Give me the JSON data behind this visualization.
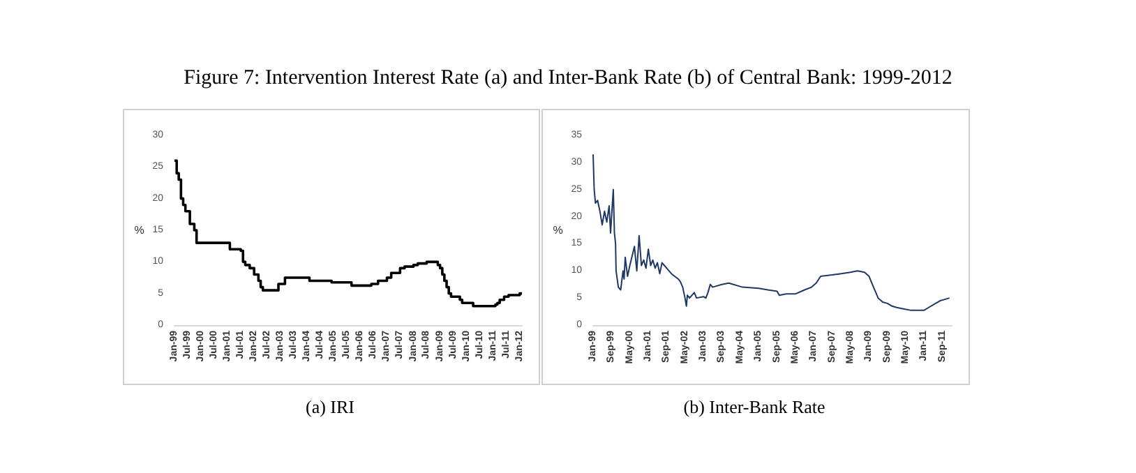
{
  "chart_data": [
    {
      "type": "step",
      "title": "Figure 7: Intervention Interest Rate (a) and Inter-Bank Rate (b) of Central Bank: 1999-2012",
      "ylabel": "%",
      "annotations": [
        "(a) IRI"
      ],
      "series": [
        {
          "color": "#000000",
          "x": [
            "1999-01",
            "1999-02",
            "1999-03",
            "1999-04",
            "1999-05",
            "1999-06",
            "1999-08",
            "1999-10",
            "1999-11",
            "2001-02",
            "2001-07",
            "2001-08",
            "2001-09",
            "2001-11",
            "2002-01",
            "2002-03",
            "2002-04",
            "2002-05",
            "2002-12",
            "2003-03",
            "2004-02",
            "2004-12",
            "2005-09",
            "2006-06",
            "2006-09",
            "2007-01",
            "2007-03",
            "2007-07",
            "2007-09",
            "2008-01",
            "2008-03",
            "2008-07",
            "2008-12",
            "2009-01",
            "2009-02",
            "2009-03",
            "2009-04",
            "2009-05",
            "2009-06",
            "2009-10",
            "2009-11",
            "2010-04",
            "2011-02",
            "2011-03",
            "2011-04",
            "2011-06",
            "2011-08",
            "2012-01",
            "2012-02"
          ],
          "values": [
            26,
            24,
            23,
            20,
            19,
            18,
            16,
            15,
            13,
            12,
            11.75,
            10,
            9.5,
            9,
            8,
            7,
            6,
            5.5,
            6.5,
            7.5,
            7,
            6.75,
            6.25,
            6.5,
            7,
            7.5,
            8.25,
            9,
            9.25,
            9.5,
            9.75,
            10,
            9.5,
            9,
            8,
            7,
            6,
            5,
            4.5,
            4,
            3.5,
            3,
            3.25,
            3.5,
            4,
            4.5,
            4.75,
            5,
            5
          ]
        }
      ],
      "xlim": [
        "1999-01",
        "2012-02"
      ],
      "ylim": [
        0,
        30
      ],
      "yticks": [
        0,
        5,
        10,
        15,
        20,
        25,
        30
      ],
      "xticks": [
        {
          "value": "1999-01",
          "label": "Jan-99"
        },
        {
          "value": "1999-07",
          "label": "Jul-99"
        },
        {
          "value": "2000-01",
          "label": "Jan-00"
        },
        {
          "value": "2000-07",
          "label": "Jul-00"
        },
        {
          "value": "2001-01",
          "label": "Jan-01"
        },
        {
          "value": "2001-07",
          "label": "Jul-01"
        },
        {
          "value": "2002-01",
          "label": "Jan-02"
        },
        {
          "value": "2002-07",
          "label": "Jul-02"
        },
        {
          "value": "2003-01",
          "label": "Jan-03"
        },
        {
          "value": "2003-07",
          "label": "Jul-03"
        },
        {
          "value": "2004-01",
          "label": "Jan-04"
        },
        {
          "value": "2004-07",
          "label": "Jul-04"
        },
        {
          "value": "2005-01",
          "label": "Jan-05"
        },
        {
          "value": "2005-07",
          "label": "Jul-05"
        },
        {
          "value": "2006-01",
          "label": "Jan-06"
        },
        {
          "value": "2006-07",
          "label": "Jul-06"
        },
        {
          "value": "2007-01",
          "label": "Jan-07"
        },
        {
          "value": "2007-07",
          "label": "Jul-07"
        },
        {
          "value": "2008-01",
          "label": "Jan-08"
        },
        {
          "value": "2008-07",
          "label": "Jul-08"
        },
        {
          "value": "2009-01",
          "label": "Jan-09"
        },
        {
          "value": "2009-07",
          "label": "Jul-09"
        },
        {
          "value": "2010-01",
          "label": "Jan-10"
        },
        {
          "value": "2010-07",
          "label": "Jul-10"
        },
        {
          "value": "2011-01",
          "label": "Jan-11"
        },
        {
          "value": "2011-07",
          "label": "Jul-11"
        },
        {
          "value": "2012-01",
          "label": "Jan-12"
        }
      ]
    },
    {
      "type": "line",
      "ylabel": "%",
      "annotations": [
        "(b) Inter-Bank Rate"
      ],
      "series": [
        {
          "color": "#1f3864",
          "x": [
            "1999-01-01",
            "1999-01-15",
            "1999-02",
            "1999-03",
            "1999-04",
            "1999-05",
            "1999-06",
            "1999-07",
            "1999-08",
            "1999-08-20",
            "1999-09-25",
            "1999-10-10",
            "1999-10-25",
            "1999-11",
            "1999-12",
            "2000-01",
            "2000-02",
            "2000-02-15",
            "2000-03",
            "2000-04",
            "2000-05",
            "2000-07",
            "2000-08",
            "2000-09",
            "2000-10",
            "2000-11",
            "2000-12",
            "2001-01",
            "2001-02",
            "2001-03",
            "2001-04",
            "2001-05",
            "2001-06",
            "2001-07",
            "2001-08",
            "2001-09",
            "2001-11",
            "2002-02",
            "2002-03",
            "2002-04",
            "2002-05-01",
            "2002-05-20",
            "2002-06",
            "2002-07",
            "2002-09",
            "2002-10",
            "2003-01",
            "2003-02",
            "2003-03",
            "2003-04",
            "2003-05",
            "2003-09",
            "2003-12",
            "2004-06",
            "2005-01",
            "2005-05",
            "2005-09",
            "2005-10",
            "2006-01",
            "2006-05",
            "2006-09",
            "2006-12",
            "2007-02",
            "2007-04",
            "2007-09",
            "2008-01",
            "2008-05",
            "2008-08",
            "2008-11",
            "2009-01",
            "2009-03",
            "2009-05",
            "2009-07",
            "2009-09",
            "2009-11",
            "2010-01",
            "2010-04",
            "2010-07",
            "2011-01",
            "2011-03",
            "2011-06",
            "2011-08",
            "2011-10",
            "2011-12"
          ],
          "values": [
            31.5,
            25,
            22.5,
            23,
            21,
            18.5,
            21,
            19,
            22,
            17,
            25,
            17,
            15,
            10,
            7,
            6.5,
            10,
            8.5,
            12.5,
            9,
            11,
            14.5,
            10,
            16.5,
            11,
            12,
            10.5,
            14,
            11,
            12,
            10.5,
            11.5,
            9.5,
            11.5,
            11,
            10.5,
            9.5,
            8.5,
            8,
            7,
            5,
            3.5,
            5.5,
            5,
            6,
            5,
            5.25,
            5,
            6,
            7.5,
            7,
            7.5,
            7.75,
            7,
            6.8,
            6.5,
            6.25,
            5.5,
            5.75,
            5.75,
            6.5,
            7,
            7.75,
            9,
            9.25,
            9.5,
            9.75,
            10,
            9.75,
            9,
            7,
            5,
            4.25,
            4,
            3.5,
            3.25,
            3,
            2.75,
            2.75,
            3.25,
            4,
            4.5,
            4.75,
            5
          ]
        }
      ],
      "xlim": [
        "1999-01",
        "2012-01"
      ],
      "ylim": [
        0,
        35
      ],
      "yticks": [
        0,
        5,
        10,
        15,
        20,
        25,
        30,
        35
      ],
      "xticks": [
        {
          "value": "1999-01",
          "label": "Jan-99"
        },
        {
          "value": "1999-09",
          "label": "Sep-99"
        },
        {
          "value": "2000-05",
          "label": "May-00"
        },
        {
          "value": "2001-01",
          "label": "Jan-01"
        },
        {
          "value": "2001-09",
          "label": "Sep-01"
        },
        {
          "value": "2002-05",
          "label": "May-02"
        },
        {
          "value": "2003-01",
          "label": "Jan-03"
        },
        {
          "value": "2003-09",
          "label": "Sep-03"
        },
        {
          "value": "2004-05",
          "label": "May-04"
        },
        {
          "value": "2005-01",
          "label": "Jan-05"
        },
        {
          "value": "2005-09",
          "label": "Sep-05"
        },
        {
          "value": "2006-05",
          "label": "May-06"
        },
        {
          "value": "2007-01",
          "label": "Jan-07"
        },
        {
          "value": "2007-09",
          "label": "Sep-07"
        },
        {
          "value": "2008-05",
          "label": "May-08"
        },
        {
          "value": "2009-01",
          "label": "Jan-09"
        },
        {
          "value": "2009-09",
          "label": "Sep-09"
        },
        {
          "value": "2010-05",
          "label": "May-10"
        },
        {
          "value": "2011-01",
          "label": "Jan-11"
        },
        {
          "value": "2011-09",
          "label": "Sep-11"
        }
      ]
    }
  ]
}
